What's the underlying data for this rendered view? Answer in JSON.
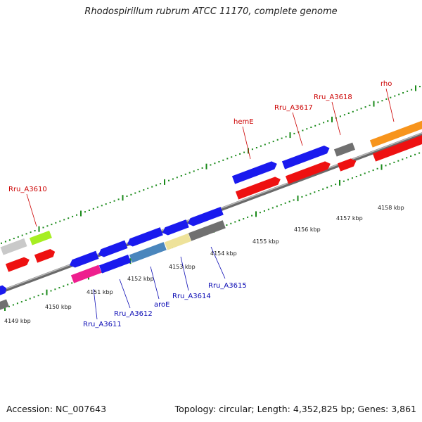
{
  "title": "Rhodospirillum rubrum ATCC 11170, complete genome",
  "accession": "Accession: NC_007643",
  "summary": "Topology: circular; Length: 4,352,825 bp; Genes: 3,861",
  "kbp_labels": [
    "4149 kbp",
    "4150 kbp",
    "4151 kbp",
    "4152 kbp",
    "4153 kbp",
    "4154 kbp",
    "4155 kbp",
    "4156 kbp",
    "4157 kbp",
    "4158 kbp"
  ],
  "gene_labels_top": [
    "Rru_A3610",
    "hemE",
    "Rru_A3617",
    "Rru_A3618",
    "rho"
  ],
  "gene_labels_bottom": [
    "Rru_A3611",
    "Rru_A3612",
    "aroE",
    "Rru_A3614",
    "Rru_A3615"
  ],
  "colors": {
    "cds_blue": "#1a1aee",
    "cds_red": "#ee1111",
    "magenta": "#ee1f8e",
    "steel": "#4a86bd",
    "khaki": "#eee29a",
    "grey": "#707070",
    "light_grey": "#c9c9c9",
    "lime": "#a6ee22",
    "orange": "#f7941c",
    "axis": "#8a8a8a",
    "tick": "#1a8a1a",
    "label_red": "#cc0000",
    "label_blue": "#0a0ab4"
  }
}
